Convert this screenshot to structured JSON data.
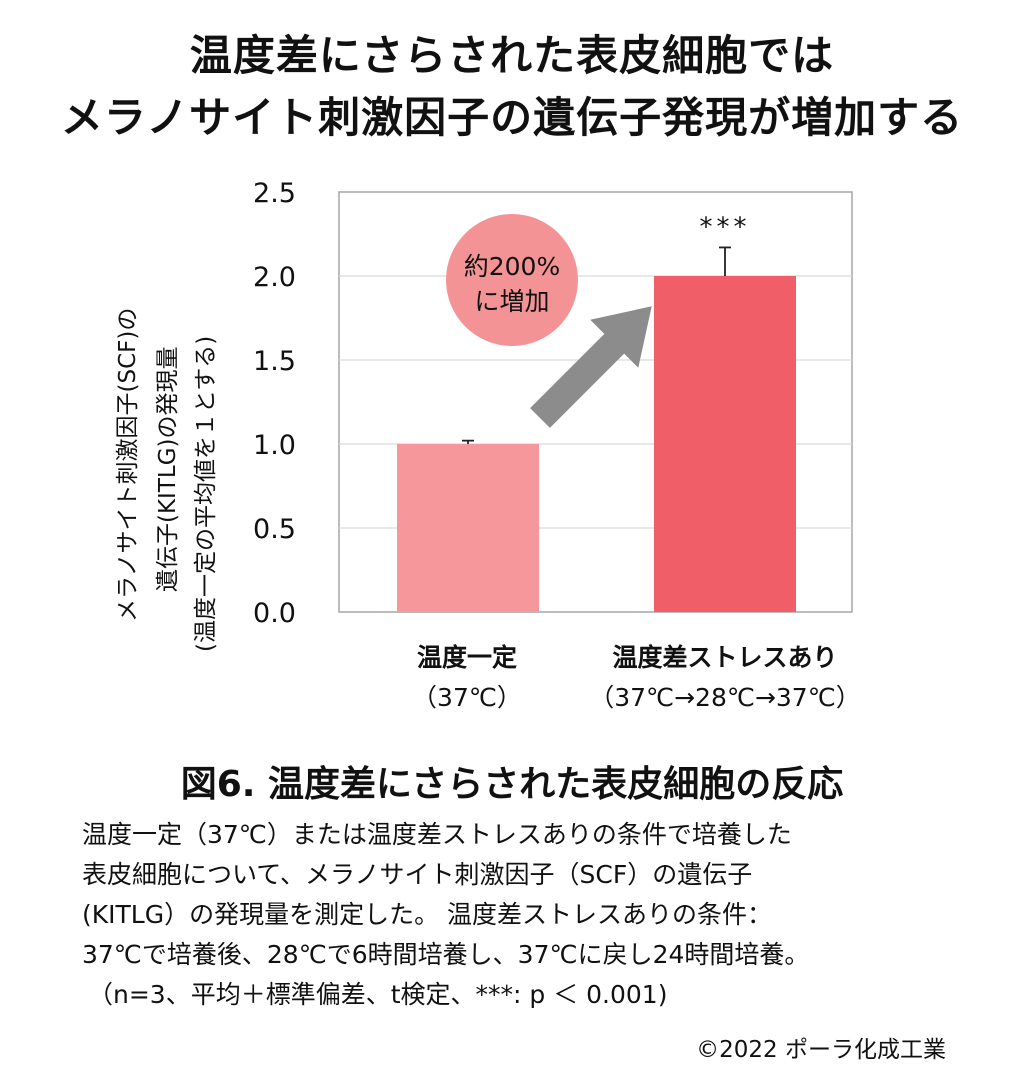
{
  "header": {
    "title_line1": "温度差にさらされた表皮細胞では",
    "title_line2": "メラノサイト刺激因子の遺伝子発現が増加する"
  },
  "chart_data": {
    "type": "bar",
    "categories": [
      "温度一定",
      "温度差ストレスあり"
    ],
    "category_conditions": [
      "（37℃）",
      "（37℃→28℃→37℃）"
    ],
    "values": [
      1.0,
      2.0
    ],
    "error_plus": [
      0.02,
      0.17
    ],
    "significance": [
      "",
      "***"
    ],
    "ylim": [
      0,
      2.5
    ],
    "yticks": [
      "0.0",
      "0.5",
      "1.0",
      "1.5",
      "2.0",
      "2.5"
    ],
    "ylabel_lines": [
      "メラノサイト刺激因子(SCF)の",
      "遺伝子(KITLG)の発現量",
      "(温度一定の平均値を１とする)"
    ],
    "annotation": {
      "line1": "約200%",
      "line2": "に増加"
    },
    "bar_colors": [
      "#f6989b",
      "#f05f68"
    ],
    "annotation_color": "#f39395",
    "arrow_color": "#8c8c8c",
    "grid": true
  },
  "caption": {
    "figure_title": "図6. 温度差にさらされた表皮細胞の反応",
    "lines": [
      "温度一定（37℃）または温度差ストレスありの条件で培養した",
      "表皮細胞について、メラノサイト刺激因子（SCF）の遺伝子",
      "(KITLG）の発現量を測定した。 温度差ストレスありの条件：",
      "37℃で培養後、28℃で6時間培養し、37℃に戻し24時間培養。",
      "（n=3、平均＋標準偏差、t検定、***: p ＜ 0.001)"
    ]
  },
  "copyright": "©2022 ポーラ化成工業"
}
